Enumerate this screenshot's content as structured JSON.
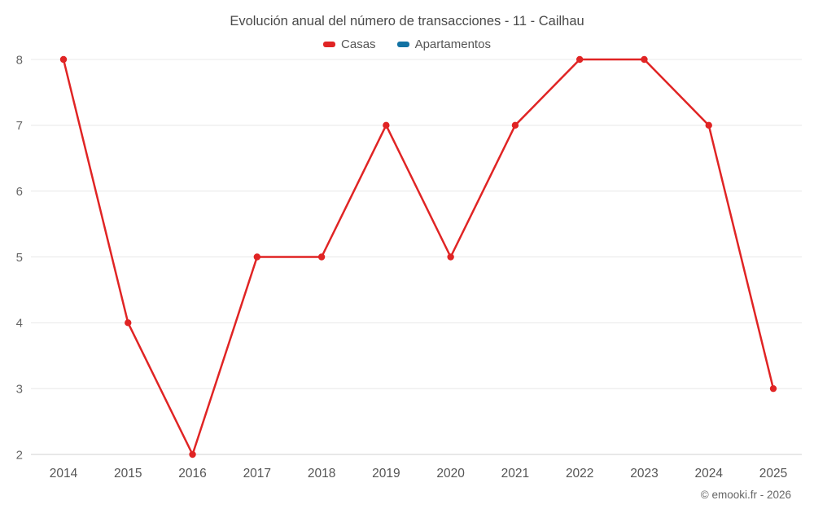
{
  "footer": "© emooki.fr - 2026",
  "chart_data": {
    "type": "line",
    "title": "Evolución anual del número de transacciones - 11 - Cailhau",
    "categories": [
      "2014",
      "2015",
      "2016",
      "2017",
      "2018",
      "2019",
      "2020",
      "2021",
      "2022",
      "2023",
      "2024",
      "2025"
    ],
    "series": [
      {
        "name": "Casas",
        "color": "#e02424",
        "values": [
          8,
          4,
          2,
          5,
          5,
          7,
          5,
          7,
          8,
          8,
          7,
          3
        ]
      },
      {
        "name": "Apartamentos",
        "color": "#1272a3",
        "values": []
      }
    ],
    "xlabel": "",
    "ylabel": "",
    "ylim": [
      2,
      8
    ],
    "yticks": [
      2,
      3,
      4,
      5,
      6,
      7,
      8
    ],
    "grid": true,
    "legend_position": "top",
    "colors": {
      "grid_line": "#e8e8e8",
      "axis_line": "#d0d0d0",
      "title_text": "#4a4a4a",
      "tick_text": "#666666"
    }
  }
}
